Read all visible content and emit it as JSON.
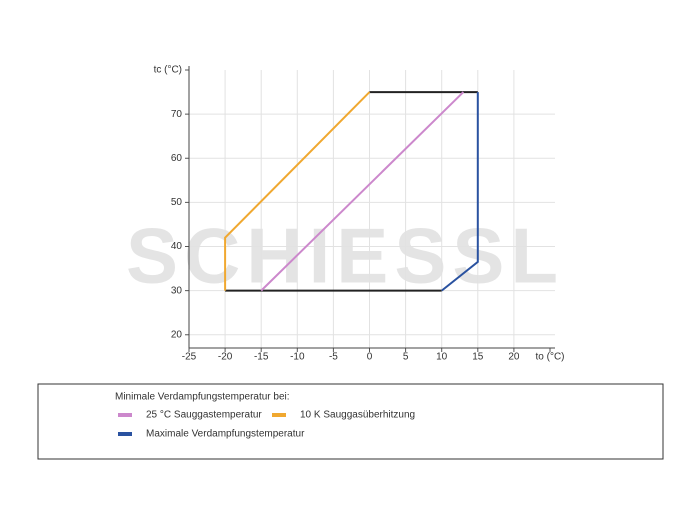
{
  "chart_data": {
    "type": "line",
    "watermark": "SCHIESSL",
    "xlim": [
      -25,
      25
    ],
    "ylim": [
      17,
      80
    ],
    "xticks": [
      -25,
      -20,
      -15,
      -10,
      -5,
      0,
      5,
      10,
      15,
      20,
      {
        "value": 25,
        "label": "to (°C)"
      }
    ],
    "yticks": [
      20,
      30,
      40,
      50,
      60,
      70,
      {
        "value": 80,
        "label": "tc (°C)"
      }
    ],
    "grid": true,
    "legend_title": "Minimale Verdampfungstemperatur bei:",
    "series": [
      {
        "name": "25 °C Sauggastemperatur",
        "color": "#cc88cc",
        "x": [
          -15,
          13
        ],
        "y": [
          30,
          75
        ]
      },
      {
        "name": "10 K Sauggasüberhitzung",
        "color": "#f0a830",
        "x": [
          -20,
          -20,
          0
        ],
        "y": [
          30,
          42,
          75
        ]
      },
      {
        "name": "Maximale Verdampfungstemperatur",
        "color": "#2a52a0",
        "x": [
          10,
          15,
          15
        ],
        "y": [
          30,
          36.5,
          75
        ]
      }
    ],
    "boundary": {
      "color": "#222222",
      "x": [
        -20,
        10,
        null,
        0,
        15
      ],
      "y": [
        30,
        30,
        null,
        75,
        75
      ]
    }
  }
}
